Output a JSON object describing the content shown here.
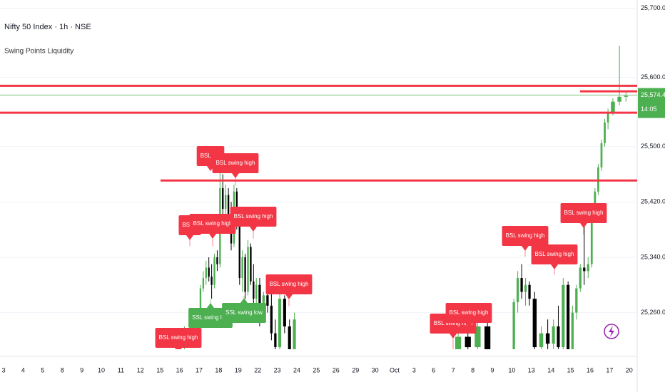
{
  "chart_data": {
    "type": "candlestick",
    "title": "Nifty 50 Index · 1h · NSE",
    "subtitle": "Swing Points Liquidity",
    "categories": [
      "3",
      "4",
      "5",
      "8",
      "9",
      "10",
      "11",
      "12",
      "15",
      "16",
      "17",
      "18",
      "19",
      "22",
      "23",
      "24",
      "25",
      "26",
      "29",
      "30",
      "Oct",
      "3",
      "6",
      "7",
      "8",
      "9",
      "10",
      "13",
      "14",
      "15",
      "16",
      "17",
      "20"
    ],
    "values": [
      null,
      null,
      null,
      null,
      null,
      null,
      null,
      null,
      null,
      [
        [
          25220,
          25240,
          25200,
          25232
        ],
        [
          25232,
          25255,
          25225,
          25250
        ]
      ],
      [
        [
          25250,
          25300,
          25245,
          25295
        ],
        [
          25295,
          25320,
          25290,
          25310
        ],
        [
          25310,
          25335,
          25300,
          25325
        ],
        [
          25325,
          25340,
          25305,
          25312
        ],
        [
          25312,
          25330,
          25280,
          25300
        ],
        [
          25300,
          25345,
          25295,
          25340
        ],
        [
          25340,
          25350,
          25320,
          25330
        ]
      ],
      [
        [
          25330,
          25465,
          25325,
          25440
        ],
        [
          25440,
          25460,
          25400,
          25410
        ],
        [
          25410,
          25445,
          25395,
          25430
        ],
        [
          25430,
          25440,
          25380,
          25390
        ],
        [
          25390,
          25420,
          25350,
          25360
        ],
        [
          25360,
          25445,
          25355,
          25435
        ],
        [
          25435,
          25440,
          25380,
          25385
        ]
      ],
      [
        [
          25385,
          25390,
          25300,
          25310
        ],
        [
          25310,
          25350,
          25290,
          25340
        ],
        [
          25340,
          25345,
          25280,
          25290
        ],
        [
          25290,
          25365,
          25285,
          25355
        ],
        [
          25355,
          25360,
          25300,
          25305
        ],
        [
          25305,
          25330,
          25260,
          25280
        ],
        [
          25280,
          25310,
          25270,
          25300
        ]
      ],
      [
        [
          25300,
          25310,
          25240,
          25250
        ],
        [
          25250,
          25290,
          25245,
          25285
        ],
        [
          25285,
          25300,
          25260,
          25270
        ],
        [
          25270,
          25290,
          25220,
          25230
        ],
        [
          25230,
          25250,
          25200,
          25210
        ]
      ],
      [
        [
          25210,
          25290,
          25200,
          25280
        ],
        [
          25280,
          25285,
          25230,
          25240
        ],
        [
          25240,
          25250,
          25200,
          25205
        ],
        [
          25205,
          25260,
          25200,
          25250
        ]
      ],
      null,
      null,
      null,
      null,
      null,
      null,
      null,
      null,
      [
        [
          25200,
          25230,
          25195,
          25225
        ],
        [
          25225,
          25240,
          25200,
          25210
        ]
      ],
      [
        [
          25210,
          25245,
          25200,
          25240
        ],
        [
          25240,
          25250,
          25200,
          25205
        ]
      ],
      null,
      [
        [
          25200,
          25280,
          25195,
          25275
        ],
        [
          25275,
          25320,
          25260,
          25310
        ],
        [
          25310,
          25330,
          25280,
          25290
        ],
        [
          25290,
          25310,
          25270,
          25300
        ],
        [
          25300,
          25305,
          25270,
          25280
        ]
      ],
      [
        [
          25280,
          25290,
          25200,
          25210
        ],
        [
          25210,
          25240,
          25195,
          25230
        ],
        [
          25230,
          25250,
          25205,
          25215
        ]
      ],
      [
        [
          25215,
          25250,
          25200,
          25240
        ],
        [
          25240,
          25270,
          25200,
          25210
        ],
        [
          25210,
          25310,
          25200,
          25300
        ],
        [
          25300,
          25305,
          25200,
          25205
        ]
      ],
      [
        [
          25205,
          25270,
          25200,
          25260
        ],
        [
          25260,
          25300,
          25250,
          25295
        ],
        [
          25295,
          25330,
          25290,
          25325
        ],
        [
          25325,
          25390,
          25300,
          25320
        ],
        [
          25320,
          25340,
          25310,
          25330
        ]
      ],
      [
        [
          25330,
          25400,
          25325,
          25395
        ],
        [
          25395,
          25440,
          25390,
          25435
        ],
        [
          25435,
          25475,
          25430,
          25470
        ],
        [
          25470,
          25510,
          25465,
          25505
        ],
        [
          25505,
          25540,
          25500,
          25535
        ],
        [
          25535,
          25555,
          25525,
          25550
        ]
      ],
      [
        [
          25550,
          25570,
          25545,
          25565
        ],
        [
          25565,
          25646,
          25560,
          25572
        ],
        [
          25572,
          25580,
          25565,
          25574.4
        ]
      ],
      null
    ],
    "up_color": "#4caf50",
    "down_color": "#000000",
    "ylim": [
      25207,
      25712
    ],
    "yticks": [
      {
        "value": 25260,
        "label": "25,260.00"
      },
      {
        "value": 25340,
        "label": "25,340.00"
      },
      {
        "value": 25420,
        "label": "25,420.00"
      },
      {
        "value": 25500,
        "label": "25,500.00"
      },
      {
        "value": 25600,
        "label": "25,600.00"
      },
      {
        "value": 25700,
        "label": "25,700.00"
      }
    ],
    "grid": true,
    "levels": [
      {
        "price": 25588,
        "color": "#f23645"
      },
      {
        "price": 25580,
        "color": "#f23645"
      },
      {
        "price": 25549,
        "color": "#f23645"
      },
      {
        "price": 25451,
        "color": "#f23645"
      }
    ],
    "last_price": {
      "value": 25574.4,
      "label": "25,574.40",
      "color": "#4caf50"
    },
    "countdown": "14:05",
    "annotations": [
      {
        "text": "BSL swing high",
        "price": 25207,
        "color": "#f23645"
      },
      {
        "text": "BSL s",
        "price": 25356,
        "color": "#f23645"
      },
      {
        "text": "BSL swing high",
        "price": 25356,
        "color": "#f23645"
      },
      {
        "text": "BSL swi",
        "price": 25465,
        "color": "#f23645"
      },
      {
        "text": "BSL swing high",
        "price": 25444,
        "color": "#f23645"
      },
      {
        "text": "BSL swing high",
        "price": 25367,
        "color": "#f23645"
      },
      {
        "text": "SSL swing low",
        "price": 25279,
        "color": "#4caf50"
      },
      {
        "text": "SSL swing low",
        "price": 25284,
        "color": "#4caf50"
      },
      {
        "text": "BSL swing high",
        "price": 25269,
        "color": "#f23645"
      },
      {
        "text": "BSL swing high",
        "price": 25207,
        "color": "#f23645"
      },
      {
        "text": "BSL swing high",
        "price": 25233,
        "color": "#f23645"
      },
      {
        "text": "BSL swing high",
        "price": 25341,
        "color": "#f23645"
      },
      {
        "text": "BSL swing high",
        "price": 25315,
        "color": "#f23645"
      },
      {
        "text": "BSL swing high",
        "price": 25372,
        "color": "#f23645"
      }
    ]
  }
}
